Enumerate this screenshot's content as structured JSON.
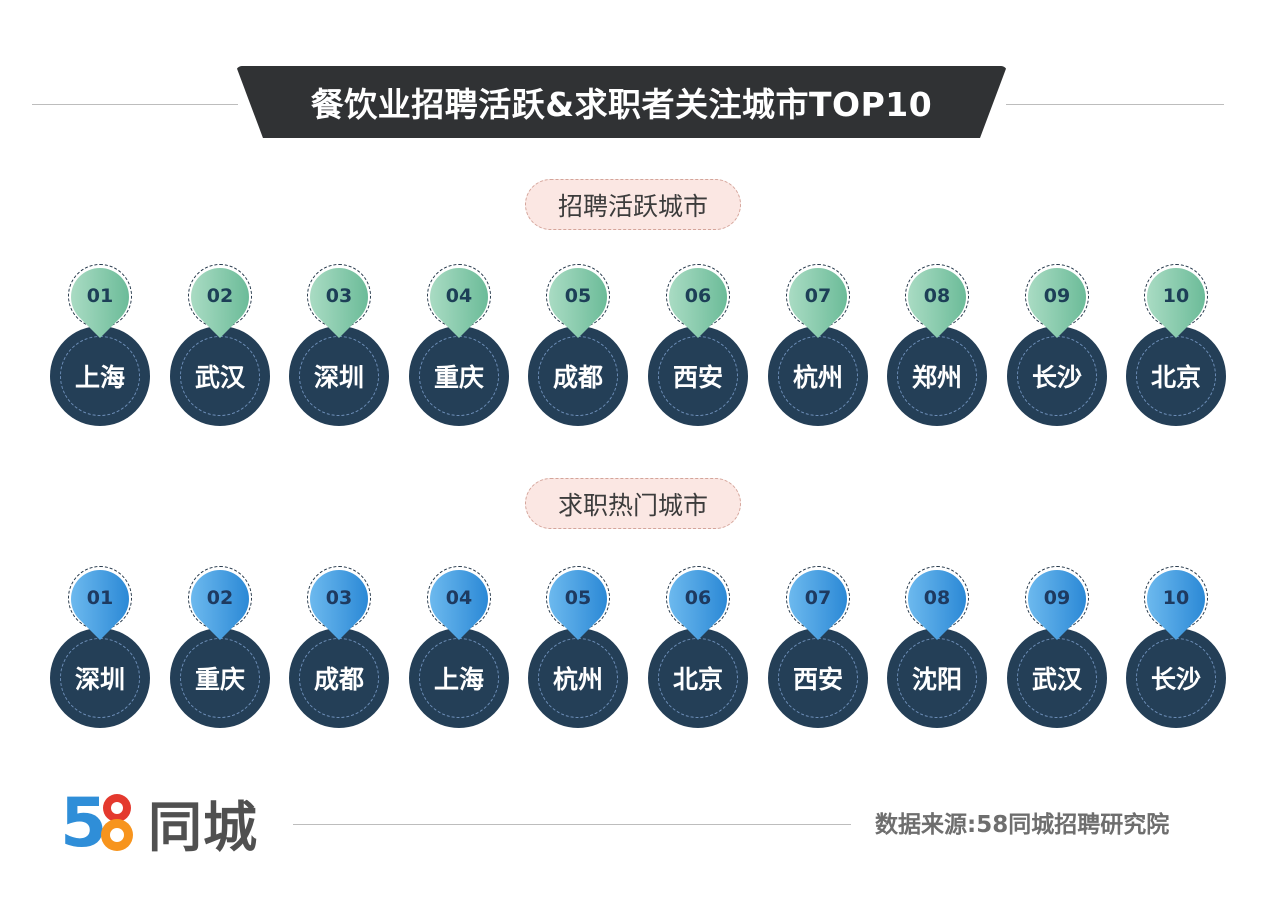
{
  "title": "餐饮业招聘活跃&求职者关注城市TOP10",
  "sections": [
    {
      "label": "招聘活跃城市",
      "theme": "green",
      "pin_color": "#7fcaa7",
      "cities": [
        {
          "rank": "01",
          "name": "上海"
        },
        {
          "rank": "02",
          "name": "武汉"
        },
        {
          "rank": "03",
          "name": "深圳"
        },
        {
          "rank": "04",
          "name": "重庆"
        },
        {
          "rank": "05",
          "name": "成都"
        },
        {
          "rank": "06",
          "name": "西安"
        },
        {
          "rank": "07",
          "name": "杭州"
        },
        {
          "rank": "08",
          "name": "郑州"
        },
        {
          "rank": "09",
          "name": "长沙"
        },
        {
          "rank": "10",
          "name": "北京"
        }
      ]
    },
    {
      "label": "求职热门城市",
      "theme": "blue",
      "pin_color": "#3c9be4",
      "cities": [
        {
          "rank": "01",
          "name": "深圳"
        },
        {
          "rank": "02",
          "name": "重庆"
        },
        {
          "rank": "03",
          "name": "成都"
        },
        {
          "rank": "04",
          "name": "上海"
        },
        {
          "rank": "05",
          "name": "杭州"
        },
        {
          "rank": "06",
          "name": "北京"
        },
        {
          "rank": "07",
          "name": "西安"
        },
        {
          "rank": "08",
          "name": "沈阳"
        },
        {
          "rank": "09",
          "name": "武汉"
        },
        {
          "rank": "10",
          "name": "长沙"
        }
      ]
    }
  ],
  "footer": {
    "logo_number": "58",
    "logo_text": "同城",
    "source": "数据来源:58同城招聘研究院"
  },
  "colors": {
    "banner": "#303234",
    "city_body": "#243f57",
    "pill_bg": "#fbe7e3"
  }
}
